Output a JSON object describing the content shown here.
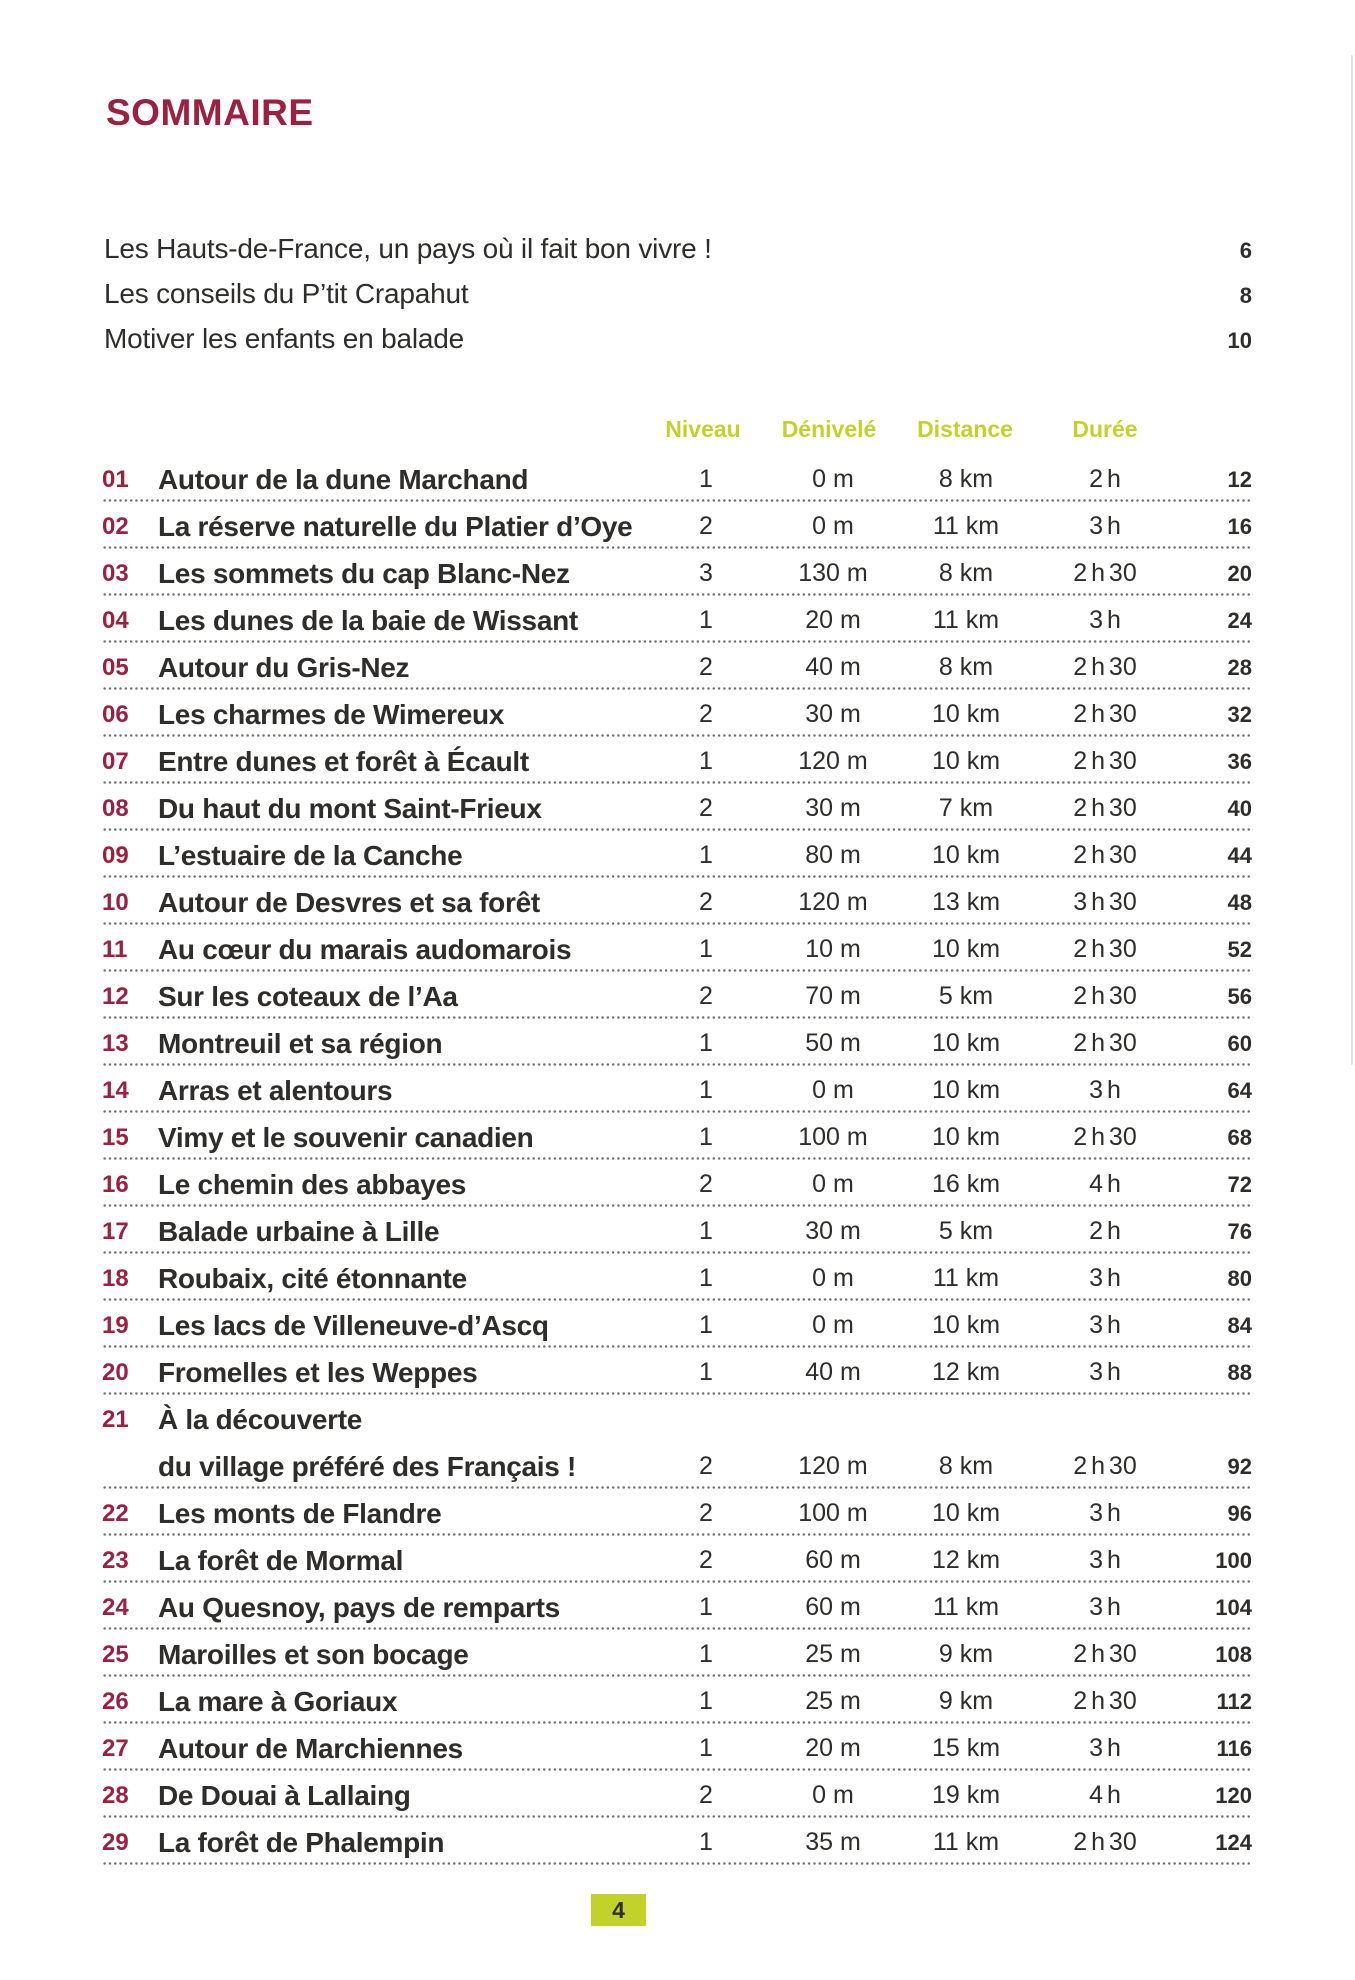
{
  "doc": {
    "title": "SOMMAIRE",
    "footer_page": "4",
    "colors": {
      "burgundy": "#9d2040",
      "green": "#c2d22a",
      "text": "#2e2d2b"
    },
    "intro": [
      {
        "label": "Les Hauts-de-France, un pays où il fait bon vivre !",
        "page": "6"
      },
      {
        "label": "Les conseils du P’tit Crapahut",
        "page": "8"
      },
      {
        "label": "Motiver les enfants en balade",
        "page": "10"
      }
    ],
    "columns": {
      "niveau": "Niveau",
      "denivele": "Dénivelé",
      "distance": "Distance",
      "duree": "Durée"
    },
    "entries": [
      {
        "num": "01",
        "title": "Autour de la dune Marchand",
        "niveau": "1",
        "denivele": "0 m",
        "distance": "8 km",
        "duree": "2 h",
        "page": "12"
      },
      {
        "num": "02",
        "title": "La réserve naturelle du Platier d’Oye",
        "niveau": "2",
        "denivele": "0 m",
        "distance": "11 km",
        "duree": "3 h",
        "page": "16"
      },
      {
        "num": "03",
        "title": "Les sommets du cap Blanc-Nez",
        "niveau": "3",
        "denivele": "130 m",
        "distance": "8 km",
        "duree": "2 h 30",
        "page": "20"
      },
      {
        "num": "04",
        "title": "Les dunes de la baie de Wissant",
        "niveau": "1",
        "denivele": "20 m",
        "distance": "11 km",
        "duree": "3 h",
        "page": "24"
      },
      {
        "num": "05",
        "title": "Autour du Gris-Nez",
        "niveau": "2",
        "denivele": "40 m",
        "distance": "8 km",
        "duree": "2 h 30",
        "page": "28"
      },
      {
        "num": "06",
        "title": "Les charmes de Wimereux",
        "niveau": "2",
        "denivele": "30 m",
        "distance": "10 km",
        "duree": "2 h 30",
        "page": "32"
      },
      {
        "num": "07",
        "title": "Entre dunes et forêt à Écault",
        "niveau": "1",
        "denivele": "120 m",
        "distance": "10 km",
        "duree": "2 h 30",
        "page": "36"
      },
      {
        "num": "08",
        "title": "Du haut du mont Saint-Frieux",
        "niveau": "2",
        "denivele": "30 m",
        "distance": "7 km",
        "duree": "2 h 30",
        "page": "40"
      },
      {
        "num": "09",
        "title": "L’estuaire de la Canche",
        "niveau": "1",
        "denivele": "80 m",
        "distance": "10 km",
        "duree": "2 h 30",
        "page": "44"
      },
      {
        "num": "10",
        "title": "Autour de Desvres et sa forêt",
        "niveau": "2",
        "denivele": "120 m",
        "distance": "13 km",
        "duree": "3 h 30",
        "page": "48"
      },
      {
        "num": "11",
        "title": "Au cœur du marais audomarois",
        "niveau": "1",
        "denivele": "10 m",
        "distance": "10 km",
        "duree": "2 h 30",
        "page": "52"
      },
      {
        "num": "12",
        "title": "Sur les coteaux de l’Aa",
        "niveau": "2",
        "denivele": "70 m",
        "distance": "5 km",
        "duree": "2 h 30",
        "page": "56"
      },
      {
        "num": "13",
        "title": "Montreuil et sa région",
        "niveau": "1",
        "denivele": "50 m",
        "distance": "10 km",
        "duree": "2 h 30",
        "page": "60"
      },
      {
        "num": "14",
        "title": "Arras et alentours",
        "niveau": "1",
        "denivele": "0 m",
        "distance": "10 km",
        "duree": "3 h",
        "page": "64"
      },
      {
        "num": "15",
        "title": "Vimy et le souvenir canadien",
        "niveau": "1",
        "denivele": "100 m",
        "distance": "10 km",
        "duree": "2 h 30",
        "page": "68"
      },
      {
        "num": "16",
        "title": "Le chemin des abbayes",
        "niveau": "2",
        "denivele": "0 m",
        "distance": "16 km",
        "duree": "4 h",
        "page": "72"
      },
      {
        "num": "17",
        "title": "Balade urbaine à Lille",
        "niveau": "1",
        "denivele": "30 m",
        "distance": "5 km",
        "duree": "2 h",
        "page": "76"
      },
      {
        "num": "18",
        "title": "Roubaix, cité étonnante",
        "niveau": "1",
        "denivele": "0 m",
        "distance": "11 km",
        "duree": "3 h",
        "page": "80"
      },
      {
        "num": "19",
        "title": "Les lacs de Villeneuve-d’Ascq",
        "niveau": "1",
        "denivele": "0 m",
        "distance": "10 km",
        "duree": "3 h",
        "page": "84"
      },
      {
        "num": "20",
        "title": "Fromelles et les Weppes",
        "niveau": "1",
        "denivele": "40 m",
        "distance": "12 km",
        "duree": "3 h",
        "page": "88"
      },
      {
        "num": "21",
        "title": "À la découverte",
        "title2": "du village préféré des Français !",
        "niveau": "2",
        "denivele": "120 m",
        "distance": "8 km",
        "duree": "2 h 30",
        "page": "92"
      },
      {
        "num": "22",
        "title": "Les monts de Flandre",
        "niveau": "2",
        "denivele": "100 m",
        "distance": "10 km",
        "duree": "3 h",
        "page": "96"
      },
      {
        "num": "23",
        "title": "La forêt de Mormal",
        "niveau": "2",
        "denivele": "60 m",
        "distance": "12 km",
        "duree": "3 h",
        "page": "100"
      },
      {
        "num": "24",
        "title": "Au Quesnoy, pays de remparts",
        "niveau": "1",
        "denivele": "60 m",
        "distance": "11 km",
        "duree": "3 h",
        "page": "104"
      },
      {
        "num": "25",
        "title": "Maroilles et son bocage",
        "niveau": "1",
        "denivele": "25 m",
        "distance": "9 km",
        "duree": "2 h 30",
        "page": "108"
      },
      {
        "num": "26",
        "title": "La mare à Goriaux",
        "niveau": "1",
        "denivele": "25 m",
        "distance": "9 km",
        "duree": "2 h 30",
        "page": "112"
      },
      {
        "num": "27",
        "title": "Autour de Marchiennes",
        "niveau": "1",
        "denivele": "20 m",
        "distance": "15 km",
        "duree": "3 h",
        "page": "116"
      },
      {
        "num": "28",
        "title": "De Douai à Lallaing",
        "niveau": "2",
        "denivele": "0 m",
        "distance": "19 km",
        "duree": "4 h",
        "page": "120"
      },
      {
        "num": "29",
        "title": "La forêt de Phalempin",
        "niveau": "1",
        "denivele": "35 m",
        "distance": "11 km",
        "duree": "2 h 30",
        "page": "124"
      }
    ]
  }
}
